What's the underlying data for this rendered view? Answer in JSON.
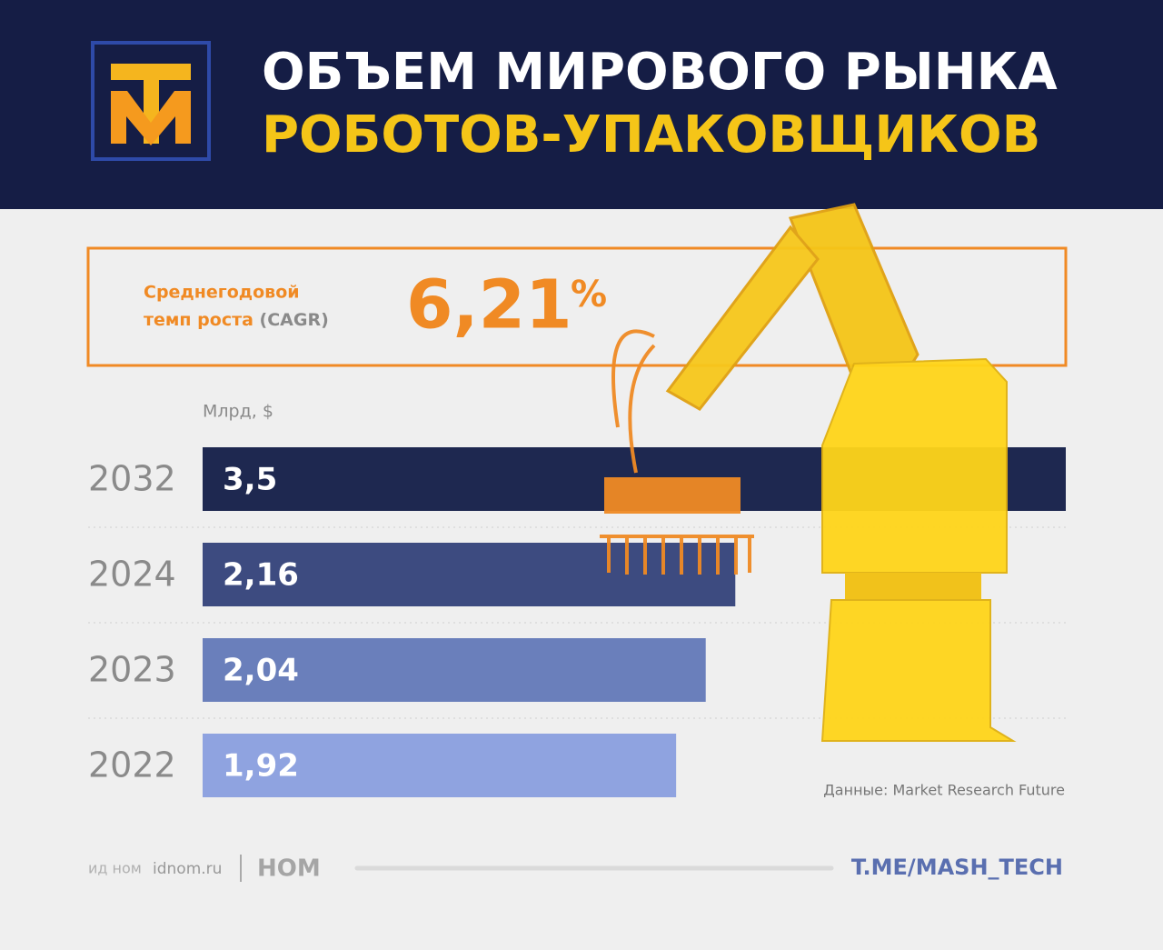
{
  "chart_data": {
    "type": "bar",
    "orientation": "horizontal",
    "title": [
      "ОБЪЕМ МИРОВОГО РЫНКА",
      "РОБОТОВ-УПАКОВЩИКОВ"
    ],
    "cagr": {
      "label": [
        "Среднегодовой",
        "темп роста",
        "(CAGR)"
      ],
      "value": 6.21,
      "value_label": "6,21",
      "unit": "%"
    },
    "unit_label": "Млрд, $",
    "categories": [
      "2032",
      "2024",
      "2023",
      "2022"
    ],
    "values": [
      3.5,
      2.16,
      2.04,
      1.92
    ],
    "value_labels": [
      "3,5",
      "2,16",
      "2,04",
      "1,92"
    ],
    "colors": [
      "#1e2850",
      "#3d4b80",
      "#6a7fbb",
      "#8fa3e0"
    ],
    "xlim": [
      0,
      3.5
    ],
    "source": "Данные: Market Research Future",
    "footer": {
      "brand_small": "ид ном",
      "site": "idnom.ru",
      "brand": "НОМ",
      "link": "T.ME/MASH_TECH"
    }
  }
}
